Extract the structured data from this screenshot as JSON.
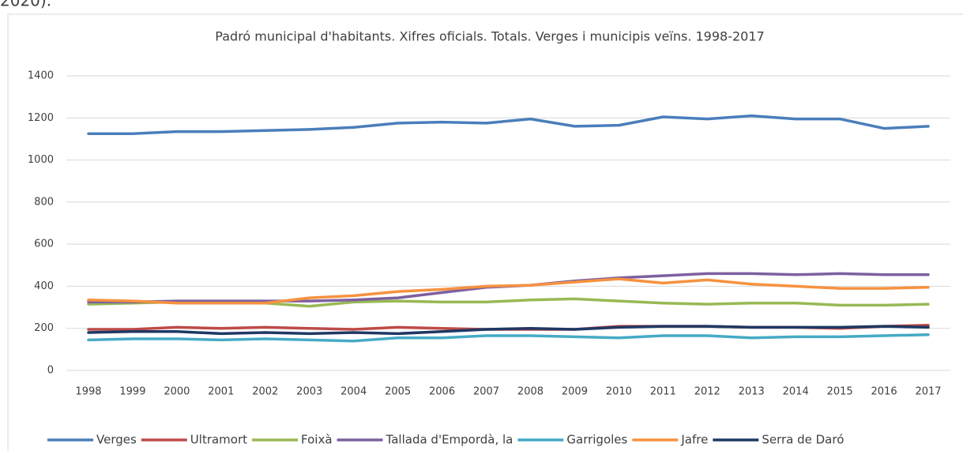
{
  "header_text": "2020).",
  "chart_data": {
    "type": "line",
    "title": "Padró municipal d'habitants. Xifres oficials. Totals. Verges i municipis veïns. 1998-2017",
    "categories": [
      "1998",
      "1999",
      "2000",
      "2001",
      "2002",
      "2003",
      "2004",
      "2005",
      "2006",
      "2007",
      "2008",
      "2009",
      "2010",
      "2011",
      "2012",
      "2013",
      "2014",
      "2015",
      "2016",
      "2017"
    ],
    "series": [
      {
        "name": "Verges",
        "color": "#4a7ebb",
        "values": [
          1125,
          1125,
          1135,
          1135,
          1140,
          1145,
          1155,
          1175,
          1180,
          1175,
          1195,
          1160,
          1165,
          1205,
          1195,
          1210,
          1195,
          1195,
          1150,
          1160
        ]
      },
      {
        "name": "Ultramort",
        "color": "#be4b48",
        "values": [
          195,
          195,
          205,
          200,
          205,
          200,
          195,
          205,
          200,
          195,
          195,
          195,
          210,
          210,
          210,
          205,
          205,
          200,
          210,
          215
        ]
      },
      {
        "name": "Foixà",
        "color": "#98b954",
        "values": [
          315,
          320,
          325,
          325,
          320,
          305,
          325,
          330,
          325,
          325,
          335,
          340,
          330,
          320,
          315,
          320,
          320,
          310,
          310,
          315
        ]
      },
      {
        "name": "Tallada d'Empordà, la",
        "color": "#7d60a0",
        "values": [
          325,
          325,
          330,
          330,
          330,
          330,
          335,
          345,
          370,
          395,
          405,
          425,
          440,
          450,
          460,
          460,
          455,
          460,
          455,
          455
        ]
      },
      {
        "name": "Garrigoles",
        "color": "#46aac5",
        "values": [
          145,
          150,
          150,
          145,
          150,
          145,
          140,
          155,
          155,
          165,
          165,
          160,
          155,
          165,
          165,
          155,
          160,
          160,
          165,
          170
        ]
      },
      {
        "name": "Jafre",
        "color": "#f69240",
        "values": [
          335,
          330,
          320,
          320,
          320,
          345,
          355,
          375,
          385,
          400,
          405,
          420,
          435,
          415,
          430,
          410,
          400,
          390,
          390,
          395
        ]
      },
      {
        "name": "Serra de Daró",
        "color": "#1f3864",
        "values": [
          180,
          185,
          185,
          175,
          180,
          175,
          180,
          175,
          185,
          195,
          200,
          195,
          205,
          210,
          210,
          205,
          205,
          205,
          210,
          205
        ]
      }
    ],
    "ylim": [
      0,
      1400
    ],
    "yticks": [
      0,
      200,
      400,
      600,
      800,
      1000,
      1200,
      1400
    ],
    "grid": true,
    "legend": "bottom"
  }
}
